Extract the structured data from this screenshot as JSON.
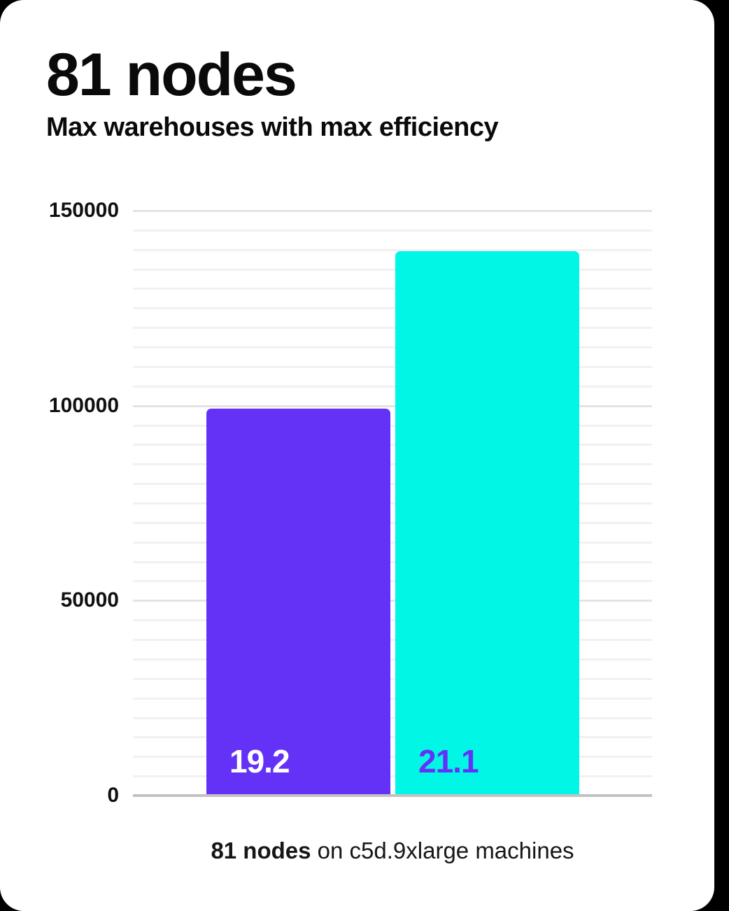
{
  "page": {
    "background_color": "#000000",
    "card_background_color": "#ffffff"
  },
  "header": {
    "title": "81 nodes",
    "subtitle": "Max warehouses with max efficiency"
  },
  "chart_data": {
    "type": "bar",
    "title": "81 nodes",
    "subtitle": "Max warehouses with max efficiency",
    "categories": [
      "19.2",
      "21.1"
    ],
    "series": [
      {
        "name": "bar-1",
        "label": "19.2",
        "value": 99200,
        "color": "#6432f7",
        "label_color": "#ffffff"
      },
      {
        "name": "bar-2",
        "label": "21.1",
        "value": 139600,
        "color": "#00f7e6",
        "label_color": "#6432f7"
      }
    ],
    "xlabel": "",
    "ylabel": "",
    "ylim": [
      0,
      150000
    ],
    "yticks": [
      0,
      50000,
      100000,
      150000
    ],
    "ytick_labels": [
      "0",
      "50000",
      "100000",
      "150000"
    ],
    "grid": {
      "visible": true,
      "minor_step": 5000,
      "major_step": 50000,
      "minor_color": "#f1f1f1",
      "major_color": "#e4e4e4",
      "axis_color": "#c2c2c2"
    },
    "legend_position": "none"
  },
  "caption": {
    "bold": "81 nodes",
    "rest": " on c5d.9xlarge machines"
  }
}
